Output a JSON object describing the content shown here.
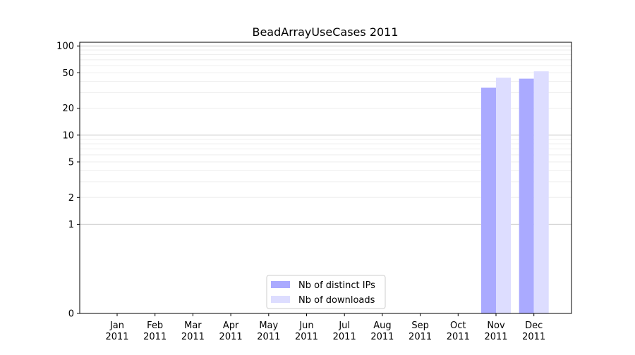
{
  "chart_data": {
    "type": "bar",
    "title": "BeadArrayUseCases 2011",
    "xlabel": "",
    "ylabel": "",
    "y_scale": "symlog",
    "ylim": [
      0,
      110
    ],
    "y_ticks": [
      0,
      1,
      2,
      5,
      10,
      20,
      50,
      100
    ],
    "y_tick_labels": [
      "0",
      "1",
      "2",
      "5",
      "10",
      "20",
      "50",
      "100"
    ],
    "grid": "horizontal",
    "legend_position": "bottom-center",
    "categories": [
      "Jan\n2011",
      "Feb\n2011",
      "Mar\n2011",
      "Apr\n2011",
      "May\n2011",
      "Jun\n2011",
      "Jul\n2011",
      "Aug\n2011",
      "Sep\n2011",
      "Oct\n2011",
      "Nov\n2011",
      "Dec\n2011"
    ],
    "series": [
      {
        "name": "Nb of distinct IPs",
        "color": "#aaaaff",
        "values": [
          0,
          0,
          0,
          0,
          0,
          0,
          0,
          0,
          0,
          0,
          34,
          43
        ]
      },
      {
        "name": "Nb of downloads",
        "color": "#ddddff",
        "values": [
          0,
          0,
          0,
          0,
          0,
          0,
          0,
          0,
          0,
          0,
          44,
          52
        ]
      }
    ]
  }
}
